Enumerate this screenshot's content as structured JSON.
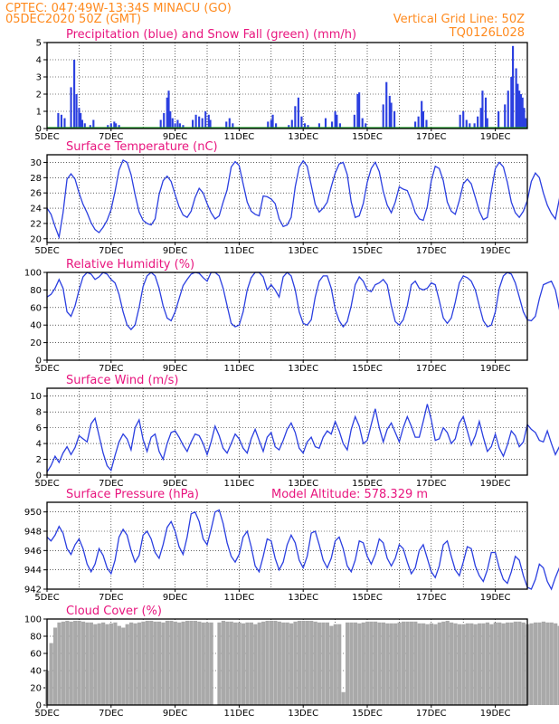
{
  "header": {
    "line1": "CPTEC:   047:49W-13:34S   MINACU (GO)",
    "line2": "05DEC2020 50Z (GMT)",
    "grid_note": "Vertical Grid Line: 50Z",
    "model_code": "TQ0126L028"
  },
  "colors": {
    "header": "#ff8a1e",
    "title": "#e8157e",
    "series": "#2b3fe0",
    "snow": "#22a52b",
    "cloud": "#a9a9a9"
  },
  "chart_data": [
    {
      "id": "precip",
      "type": "bar",
      "title": "Precipitation (blue) and Snow Fall (green) (mm/h)",
      "x_ticks": [
        "5DEC",
        "7DEC",
        "9DEC",
        "11DEC",
        "13DEC",
        "15DEC",
        "17DEC",
        "19DEC"
      ],
      "y_ticks": [
        0,
        1,
        2,
        3,
        4,
        5
      ],
      "ylim": [
        0,
        5
      ],
      "x_range_days": [
        0,
        15
      ],
      "series": [
        {
          "color": "#2b3fe0",
          "x": [
            0.35,
            0.45,
            0.55,
            0.75,
            0.85,
            0.92,
            1.0,
            1.05,
            1.1,
            1.18,
            1.35,
            1.45,
            1.9,
            2.0,
            2.1,
            2.15,
            2.25,
            3.55,
            3.65,
            3.75,
            3.8,
            3.85,
            3.92,
            4.0,
            4.08,
            4.15,
            4.25,
            4.55,
            4.65,
            4.75,
            4.85,
            4.95,
            5.05,
            5.1,
            5.6,
            5.7,
            5.8,
            6.9,
            7.0,
            7.05,
            7.15,
            7.55,
            7.65,
            7.75,
            7.85,
            7.95,
            8.05,
            8.15,
            8.5,
            8.7,
            8.9,
            9.0,
            9.05,
            9.15,
            9.6,
            9.7,
            9.75,
            9.85,
            9.95,
            10.5,
            10.6,
            10.7,
            10.75,
            10.85,
            11.5,
            11.6,
            11.7,
            11.75,
            11.85,
            12.9,
            13.0,
            13.1,
            13.2,
            13.35,
            13.45,
            13.55,
            13.6,
            13.7,
            13.75,
            14.1,
            14.3,
            14.4,
            14.5,
            14.55,
            14.65,
            14.7,
            14.75,
            14.8,
            14.85,
            14.9,
            14.95
          ],
          "values": [
            0.9,
            0.8,
            0.6,
            2.4,
            4.0,
            2.0,
            1.2,
            0.9,
            0.5,
            0.3,
            0.2,
            0.5,
            0.2,
            0.3,
            0.4,
            0.3,
            0.2,
            0.5,
            0.9,
            1.8,
            2.2,
            1.0,
            0.6,
            0.3,
            0.5,
            0.3,
            0.2,
            0.5,
            0.8,
            0.7,
            0.6,
            1.0,
            0.8,
            0.5,
            0.4,
            0.6,
            0.3,
            0.4,
            0.5,
            0.8,
            0.3,
            0.2,
            0.5,
            1.3,
            1.8,
            0.7,
            0.3,
            0.2,
            0.3,
            0.6,
            0.4,
            1.0,
            0.8,
            0.3,
            0.8,
            2.0,
            2.1,
            0.6,
            0.3,
            1.4,
            2.7,
            1.9,
            1.5,
            1.0,
            0.4,
            0.7,
            1.6,
            1.0,
            0.5,
            0.8,
            1.0,
            0.5,
            0.3,
            0.3,
            0.7,
            1.2,
            2.2,
            1.8,
            0.6,
            1.0,
            1.4,
            2.2,
            3.0,
            4.8,
            3.5,
            2.6,
            2.2,
            2.0,
            1.8,
            1.2,
            0.6
          ]
        },
        {
          "color": "#22a52b",
          "name": "",
          "x": [],
          "values": []
        }
      ]
    },
    {
      "id": "temp",
      "type": "line",
      "title": "Surface Temperature (nC)",
      "x_ticks": [
        "5DEC",
        "7DEC",
        "9DEC",
        "11DEC",
        "13DEC",
        "15DEC",
        "17DEC",
        "19DEC"
      ],
      "y_ticks": [
        20,
        22,
        24,
        26,
        28,
        30
      ],
      "ylim": [
        19.5,
        31
      ],
      "x_range_days": [
        0,
        15
      ],
      "step": 0.125,
      "values": [
        24.0,
        23.2,
        21.6,
        20.2,
        23.4,
        27.8,
        28.5,
        27.8,
        26.0,
        24.5,
        23.4,
        22.1,
        21.2,
        20.8,
        21.5,
        22.4,
        23.8,
        26.2,
        29.0,
        30.3,
        30.0,
        28.4,
        25.8,
        23.5,
        22.4,
        22.0,
        21.8,
        22.6,
        25.8,
        27.6,
        28.2,
        27.5,
        25.8,
        24.2,
        23.1,
        22.8,
        23.6,
        25.4,
        26.6,
        26.0,
        24.6,
        23.4,
        22.6,
        23.0,
        24.8,
        26.4,
        29.4,
        30.1,
        29.6,
        27.2,
        24.8,
        23.6,
        23.2,
        23.0,
        25.6,
        25.5,
        25.2,
        24.6,
        22.6,
        21.6,
        21.8,
        22.8,
        26.8,
        29.4,
        30.2,
        29.5,
        27.0,
        24.5,
        23.5,
        24.0,
        24.8,
        26.8,
        28.6,
        29.8,
        30.0,
        28.4,
        24.8,
        22.8,
        23.0,
        24.6,
        27.4,
        29.2,
        30.0,
        28.8,
        26.2,
        24.4,
        23.4,
        24.8,
        26.8,
        26.5,
        26.3,
        25.0,
        23.4,
        22.6,
        22.4,
        24.2,
        27.6,
        29.5,
        29.2,
        27.6,
        24.8,
        23.6,
        23.2,
        25.0,
        27.2,
        27.8,
        27.2,
        25.4,
        23.6,
        22.5,
        22.8,
        26.2,
        29.2,
        30.0,
        29.4,
        27.4,
        24.8,
        23.4,
        22.8,
        23.6,
        25.0,
        27.5,
        28.6,
        28.0,
        26.0,
        24.4,
        23.3,
        22.6,
        25.2,
        28.8,
        29.5,
        28.6,
        25.6,
        23.4,
        23.0,
        22.8,
        24.2,
        24.2,
        23.2,
        23.4
      ]
    },
    {
      "id": "rh",
      "type": "line",
      "title": "Relative Humidity (%)",
      "x_ticks": [
        "5DEC",
        "7DEC",
        "9DEC",
        "11DEC",
        "13DEC",
        "15DEC",
        "17DEC",
        "19DEC"
      ],
      "y_ticks": [
        0,
        20,
        40,
        60,
        80,
        100
      ],
      "ylim": [
        0,
        100
      ],
      "x_range_days": [
        0,
        15
      ],
      "step": 0.125,
      "values": [
        72,
        75,
        82,
        92,
        82,
        55,
        50,
        62,
        80,
        95,
        100,
        98,
        92,
        95,
        100,
        98,
        92,
        88,
        75,
        55,
        40,
        35,
        40,
        60,
        84,
        96,
        100,
        96,
        82,
        62,
        48,
        45,
        55,
        70,
        85,
        92,
        98,
        100,
        99,
        94,
        90,
        100,
        100,
        96,
        82,
        62,
        42,
        38,
        40,
        55,
        80,
        94,
        100,
        100,
        95,
        80,
        86,
        80,
        72,
        95,
        100,
        96,
        80,
        55,
        42,
        40,
        46,
        72,
        90,
        96,
        96,
        82,
        58,
        45,
        38,
        44,
        62,
        86,
        95,
        90,
        80,
        78,
        86,
        88,
        92,
        86,
        62,
        44,
        40,
        46,
        62,
        86,
        90,
        82,
        80,
        82,
        88,
        86,
        68,
        48,
        42,
        48,
        66,
        88,
        96,
        94,
        90,
        80,
        62,
        45,
        38,
        40,
        55,
        82,
        96,
        100,
        98,
        88,
        72,
        55,
        46,
        45,
        50,
        70,
        86,
        88,
        90,
        80,
        58,
        40,
        38,
        44,
        60,
        84,
        94,
        94,
        92,
        90,
        80,
        92
      ]
    },
    {
      "id": "wind",
      "type": "line",
      "title": "Surface Wind (m/s)",
      "x_ticks": [
        "5DEC",
        "7DEC",
        "9DEC",
        "11DEC",
        "13DEC",
        "15DEC",
        "17DEC",
        "19DEC"
      ],
      "y_ticks": [
        0,
        2,
        4,
        6,
        8,
        10
      ],
      "ylim": [
        0,
        11
      ],
      "x_range_days": [
        0,
        15
      ],
      "step": 0.125,
      "values": [
        0.4,
        1.2,
        2.4,
        1.6,
        2.8,
        3.6,
        2.6,
        3.5,
        5.0,
        4.6,
        4.2,
        6.5,
        7.2,
        5.0,
        2.8,
        1.2,
        0.6,
        2.5,
        4.2,
        5.2,
        4.6,
        3.2,
        6.0,
        7.0,
        4.5,
        3.0,
        4.8,
        5.2,
        3.0,
        2.0,
        4.0,
        5.4,
        5.6,
        4.8,
        3.8,
        3.0,
        4.2,
        5.2,
        5.0,
        4.0,
        2.6,
        4.2,
        6.2,
        5.0,
        3.4,
        2.8,
        4.0,
        5.2,
        4.6,
        3.4,
        2.8,
        4.6,
        5.8,
        4.4,
        3.0,
        4.8,
        5.4,
        3.6,
        3.2,
        4.4,
        5.8,
        6.6,
        5.4,
        3.4,
        2.8,
        4.2,
        4.8,
        3.6,
        3.4,
        4.8,
        5.6,
        5.2,
        6.8,
        5.6,
        4.0,
        3.2,
        5.8,
        7.4,
        6.2,
        4.0,
        4.4,
        6.4,
        8.4,
        6.0,
        4.2,
        5.8,
        6.6,
        5.4,
        4.2,
        6.0,
        7.4,
        6.2,
        4.8,
        4.8,
        6.8,
        9.0,
        7.0,
        4.4,
        4.6,
        6.0,
        5.4,
        4.0,
        4.6,
        6.6,
        7.4,
        5.6,
        3.8,
        5.0,
        6.8,
        4.8,
        3.0,
        3.6,
        5.2,
        3.4,
        2.4,
        3.8,
        5.6,
        5.0,
        3.6,
        4.2,
        6.4,
        5.8,
        5.4,
        4.4,
        4.2,
        5.6,
        4.0,
        2.6,
        3.6,
        4.6,
        2.8,
        1.8,
        2.6,
        5.0,
        6.2,
        4.0,
        2.5,
        3.0,
        4.6,
        5.4,
        2.8
      ]
    },
    {
      "id": "pres",
      "type": "line",
      "title": "Surface Pressure (hPa)",
      "subtitle": "Model Altitude: 578.329 m",
      "x_ticks": [
        "5DEC",
        "7DEC",
        "9DEC",
        "11DEC",
        "13DEC",
        "15DEC",
        "17DEC",
        "19DEC"
      ],
      "y_ticks": [
        942,
        944,
        946,
        948,
        950
      ],
      "ylim": [
        942,
        951
      ],
      "x_range_days": [
        0,
        15
      ],
      "step": 0.125,
      "values": [
        947.4,
        947.0,
        947.6,
        948.5,
        947.8,
        946.2,
        945.6,
        946.6,
        947.2,
        946.2,
        944.6,
        943.8,
        944.6,
        946.2,
        945.5,
        944.2,
        943.6,
        945.0,
        947.4,
        948.2,
        947.6,
        946.0,
        944.8,
        945.5,
        947.6,
        948.0,
        947.2,
        945.8,
        945.2,
        946.6,
        948.4,
        949.0,
        948.0,
        946.4,
        945.6,
        947.4,
        949.8,
        950.0,
        949.0,
        947.2,
        946.6,
        948.2,
        950.0,
        950.2,
        948.8,
        946.8,
        945.4,
        944.8,
        945.6,
        947.4,
        948.0,
        946.4,
        944.4,
        943.8,
        945.4,
        947.2,
        947.0,
        945.2,
        944.0,
        944.8,
        946.6,
        947.6,
        946.8,
        945.0,
        944.2,
        945.4,
        947.8,
        948.0,
        946.6,
        945.0,
        944.2,
        945.2,
        947.0,
        947.4,
        946.2,
        944.4,
        943.8,
        945.0,
        947.0,
        946.8,
        945.4,
        944.6,
        945.6,
        947.2,
        946.8,
        945.2,
        944.4,
        945.2,
        946.6,
        946.2,
        944.8,
        943.6,
        944.2,
        946.0,
        946.6,
        945.2,
        943.8,
        943.2,
        944.4,
        946.6,
        947.0,
        945.4,
        944.0,
        943.4,
        944.8,
        946.4,
        946.2,
        944.4,
        943.4,
        942.8,
        944.0,
        945.8,
        945.8,
        944.2,
        943.0,
        942.6,
        943.8,
        945.4,
        945.0,
        943.4,
        942.2,
        941.8,
        943.0,
        944.6,
        944.2,
        942.8,
        942.0,
        943.2,
        944.2,
        943.6,
        942.6,
        942.2,
        943.2,
        944.0,
        943.6,
        942.8,
        943.2
      ]
    },
    {
      "id": "cloud",
      "type": "area",
      "title": "Cloud Cover (%)",
      "x_ticks": [
        "5DEC",
        "7DEC",
        "9DEC",
        "11DEC",
        "13DEC",
        "15DEC",
        "17DEC",
        "19DEC"
      ],
      "y_ticks": [
        0,
        20,
        40,
        60,
        80,
        100
      ],
      "ylim": [
        0,
        100
      ],
      "x_range_days": [
        0,
        15
      ],
      "step": 0.125,
      "values": [
        40,
        72,
        90,
        96,
        97,
        98,
        97,
        98,
        98,
        97,
        96,
        96,
        94,
        95,
        96,
        94,
        95,
        96,
        92,
        90,
        94,
        96,
        95,
        96,
        97,
        98,
        98,
        97,
        97,
        96,
        98,
        98,
        97,
        96,
        97,
        98,
        98,
        98,
        97,
        96,
        96,
        96,
        0,
        96,
        98,
        97,
        97,
        96,
        96,
        95,
        96,
        96,
        94,
        96,
        97,
        98,
        98,
        98,
        97,
        96,
        96,
        95,
        97,
        98,
        98,
        98,
        98,
        97,
        96,
        96,
        96,
        92,
        94,
        94,
        15,
        96,
        96,
        96,
        95,
        96,
        97,
        97,
        97,
        96,
        96,
        95,
        95,
        95,
        96,
        97,
        97,
        97,
        97,
        95,
        95,
        94,
        95,
        94,
        96,
        97,
        98,
        96,
        95,
        94,
        94,
        95,
        95,
        94,
        95,
        95,
        96,
        94,
        96,
        96,
        95,
        96,
        96,
        97,
        97,
        96,
        94,
        95,
        96,
        96,
        97,
        96,
        96,
        95,
        92,
        93,
        95,
        95,
        97,
        97,
        98,
        97,
        97,
        96,
        96,
        96,
        96
      ]
    }
  ]
}
